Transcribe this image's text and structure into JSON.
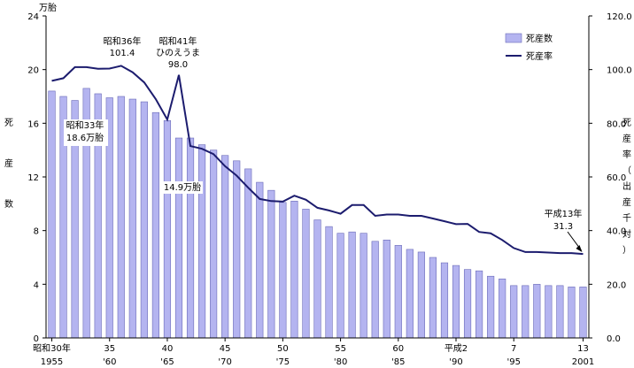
{
  "chart_data": {
    "type": "bar+line",
    "x": [
      "1955",
      "1956",
      "1957",
      "1958",
      "1959",
      "1960",
      "1961",
      "1962",
      "1963",
      "1964",
      "1965",
      "1966",
      "1967",
      "1968",
      "1969",
      "1970",
      "1971",
      "1972",
      "1973",
      "1974",
      "1975",
      "1976",
      "1977",
      "1978",
      "1979",
      "1980",
      "1981",
      "1982",
      "1983",
      "1984",
      "1985",
      "1986",
      "1987",
      "1988",
      "1989",
      "1990",
      "1991",
      "1992",
      "1993",
      "1994",
      "1995",
      "1996",
      "1997",
      "1998",
      "1999",
      "2000",
      "2001"
    ],
    "series": [
      {
        "name": "死産数",
        "type": "bar",
        "axis": "left",
        "color": "#b4b4f0",
        "values": [
          18.4,
          18.0,
          17.7,
          18.6,
          18.2,
          17.9,
          18.0,
          17.8,
          17.6,
          16.8,
          16.2,
          14.9,
          14.9,
          14.4,
          14.0,
          13.6,
          13.2,
          12.6,
          11.6,
          11.0,
          10.1,
          10.2,
          9.6,
          8.8,
          8.3,
          7.8,
          7.9,
          7.8,
          7.2,
          7.3,
          6.9,
          6.6,
          6.4,
          6.0,
          5.6,
          5.4,
          5.1,
          5.0,
          4.6,
          4.4,
          3.9,
          3.9,
          4.0,
          3.9,
          3.9,
          3.8,
          3.8
        ]
      },
      {
        "name": "死産率",
        "type": "line",
        "axis": "right",
        "color": "#1c1c6e",
        "values": [
          95.8,
          96.8,
          100.9,
          100.9,
          100.3,
          100.4,
          101.4,
          99.0,
          95.2,
          89.0,
          81.4,
          98.0,
          71.5,
          70.5,
          68.5,
          64.0,
          60.5,
          56.0,
          51.8,
          51.0,
          50.8,
          53.0,
          51.5,
          48.5,
          47.5,
          46.3,
          49.5,
          49.5,
          45.5,
          46.0,
          46.0,
          45.5,
          45.5,
          44.5,
          43.5,
          42.4,
          42.5,
          39.5,
          39.0,
          36.5,
          33.5,
          32.0,
          32.0,
          31.8,
          31.6,
          31.6,
          31.3
        ]
      }
    ],
    "y_left": {
      "ylim": [
        0,
        24
      ],
      "ticks": [
        "0",
        "4",
        "8",
        "12",
        "16",
        "20",
        "24"
      ],
      "unit": "万胎",
      "label": [
        "死",
        "産",
        "数"
      ]
    },
    "y_right": {
      "ylim": [
        0,
        120
      ],
      "ticks": [
        "0.0",
        "20.0",
        "40.0",
        "60.0",
        "80.0",
        "100.0",
        "120.0"
      ],
      "label": [
        "死",
        "産",
        "率",
        "（",
        "出",
        "産",
        "千",
        "対",
        "）"
      ]
    },
    "x_ticks": [
      {
        "x": "1955",
        "top": "昭和30年",
        "bottom": "1955"
      },
      {
        "x": "1960",
        "top": "35",
        "bottom": "'60"
      },
      {
        "x": "1965",
        "top": "40",
        "bottom": "'65"
      },
      {
        "x": "1970",
        "top": "45",
        "bottom": "'70"
      },
      {
        "x": "1975",
        "top": "50",
        "bottom": "'75"
      },
      {
        "x": "1980",
        "top": "55",
        "bottom": "'80"
      },
      {
        "x": "1985",
        "top": "60",
        "bottom": "'85"
      },
      {
        "x": "1990",
        "top": "平成2",
        "bottom": "'90"
      },
      {
        "x": "1995",
        "top": "7",
        "bottom": "'95"
      },
      {
        "x": "2001",
        "top": "13",
        "bottom": "2001"
      }
    ],
    "annotations": [
      {
        "lines": [
          "昭和36年",
          "101.4"
        ]
      },
      {
        "lines": [
          "昭和41年",
          "ひのえうま",
          "98.0"
        ]
      },
      {
        "lines": [
          "昭和33年",
          "18.6万胎"
        ]
      },
      {
        "lines": [
          "14.9万胎"
        ]
      },
      {
        "lines": [
          "平成13年",
          "31.3"
        ]
      }
    ],
    "legend": {
      "placement": "top-right"
    },
    "grid": false
  }
}
